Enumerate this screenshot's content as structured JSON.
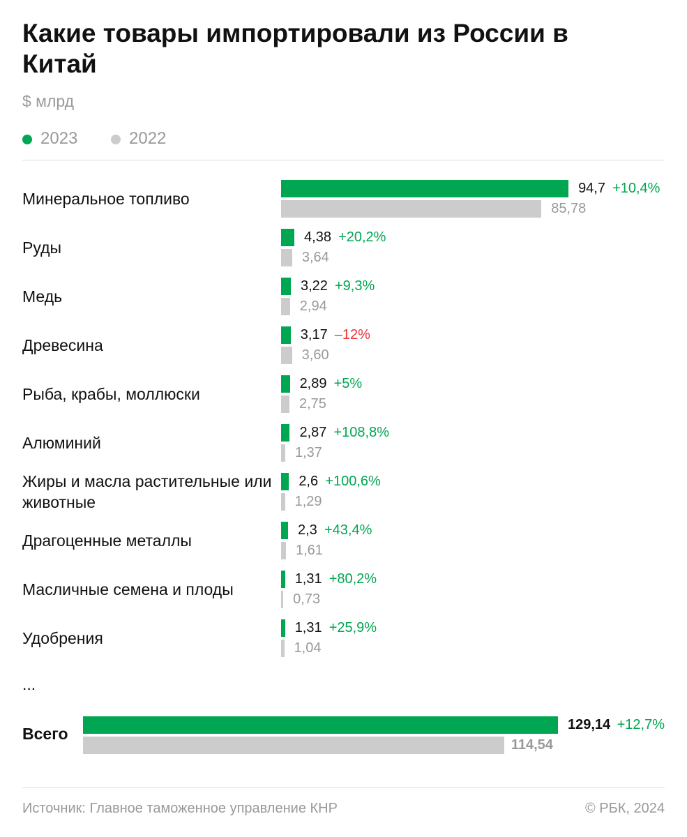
{
  "chart_data": {
    "type": "bar",
    "title": "Какие товары импортировали из России в Китай",
    "subtitle": "$ млрд",
    "categories": [
      "Минеральное топливо",
      "Руды",
      "Медь",
      "Древесина",
      "Рыба, крабы, моллюски",
      "Алюминий",
      "Жиры и масла растительные или животные",
      "Драгоценные металлы",
      "Масличные семена и плоды",
      "Удобрения"
    ],
    "series": [
      {
        "name": "2023",
        "color": "#00a651",
        "values": [
          94.7,
          4.38,
          3.22,
          3.17,
          2.89,
          2.87,
          2.6,
          2.3,
          1.31,
          1.31
        ],
        "value_labels": [
          "94,7",
          "4,38",
          "3,22",
          "3,17",
          "2,89",
          "2,87",
          "2,6",
          "2,3",
          "1,31",
          "1,31"
        ]
      },
      {
        "name": "2022",
        "color": "#cccccc",
        "values": [
          85.78,
          3.64,
          2.94,
          3.6,
          2.75,
          1.37,
          1.29,
          1.61,
          0.73,
          1.04
        ],
        "value_labels": [
          "85,78",
          "3,64",
          "2,94",
          "3,60",
          "2,75",
          "1,37",
          "1,29",
          "1,61",
          "0,73",
          "1,04"
        ]
      }
    ],
    "changes": {
      "values": [
        10.4,
        20.2,
        9.3,
        -12,
        5,
        108.8,
        100.6,
        43.4,
        80.2,
        25.9
      ],
      "value_labels": [
        "+10,4%",
        "+20,2%",
        "+9,3%",
        "–12%",
        "+5%",
        "+108,8%",
        "+100,6%",
        "+43,4%",
        "+80,2%",
        "+25,9%"
      ]
    },
    "xlim": [
      0,
      126.4
    ],
    "ellipsis": "...",
    "total": {
      "label": "Всего",
      "values": [
        129.14,
        114.54
      ],
      "value_labels": [
        "129,14",
        "114,54"
      ],
      "change": 12.7,
      "change_label": "+12,7%",
      "xlim": [
        0,
        158.2
      ]
    },
    "source": "Источник: Главное таможенное управление КНР",
    "credit": "© РБК, 2024"
  }
}
